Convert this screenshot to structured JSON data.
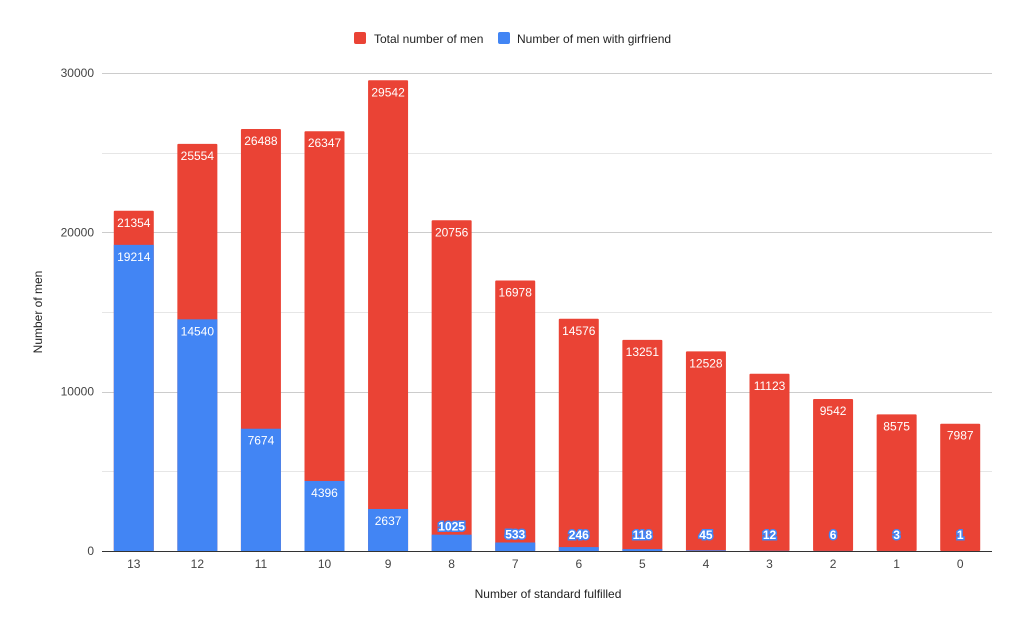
{
  "chart_data": {
    "type": "bar",
    "title": "",
    "xlabel": "Number of standard fulfilled",
    "ylabel": "Number of men",
    "ylim": [
      0,
      30000
    ],
    "yticks": [
      "0",
      "10000",
      "20000",
      "30000"
    ],
    "categories": [
      "13",
      "12",
      "11",
      "10",
      "9",
      "8",
      "7",
      "6",
      "5",
      "4",
      "3",
      "2",
      "1",
      "0"
    ],
    "legend_position": "top",
    "grid": true,
    "series": [
      {
        "name": "Total number of men",
        "color": "#ea4335",
        "values": [
          21354,
          25554,
          26488,
          26347,
          29542,
          20756,
          16978,
          14576,
          13251,
          12528,
          11123,
          9542,
          8575,
          7987
        ]
      },
      {
        "name": "Number of men with girfriend",
        "color": "#4285f4",
        "values": [
          19214,
          14540,
          7674,
          4396,
          2637,
          1025,
          533,
          246,
          118,
          45,
          12,
          6,
          3,
          1
        ]
      }
    ]
  }
}
